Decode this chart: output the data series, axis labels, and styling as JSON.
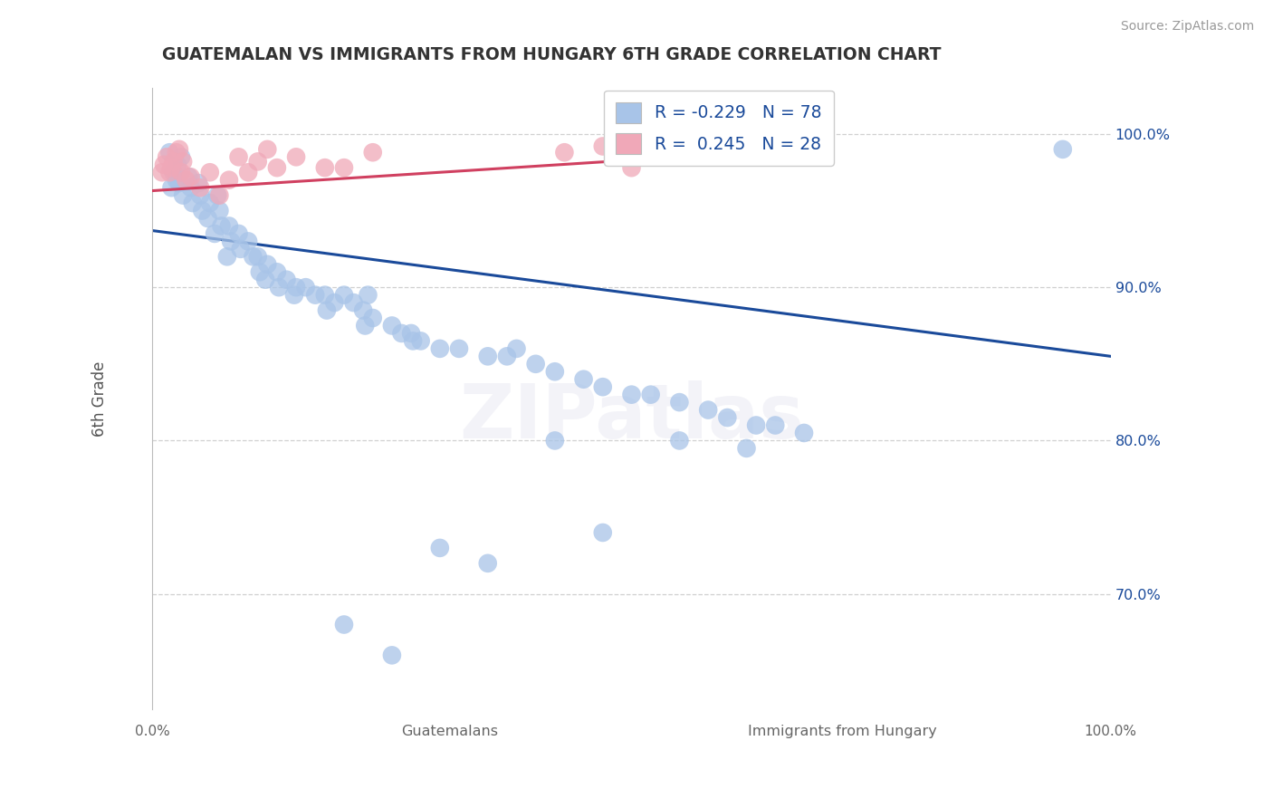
{
  "title": "GUATEMALAN VS IMMIGRANTS FROM HUNGARY 6TH GRADE CORRELATION CHART",
  "source": "Source: ZipAtlas.com",
  "ylabel": "6th Grade",
  "legend_blue_r": "-0.229",
  "legend_blue_n": "78",
  "legend_pink_r": "0.245",
  "legend_pink_n": "28",
  "blue_color": "#a8c4e8",
  "pink_color": "#f0a8b8",
  "blue_line_color": "#1a4a9a",
  "pink_line_color": "#d04060",
  "title_color": "#333333",
  "source_color": "#999999",
  "legend_text_color": "#1a4a9a",
  "grid_color": "#d0d0d0",
  "blue_scatter_x": [
    0.022,
    0.025,
    0.02,
    0.03,
    0.028,
    0.032,
    0.026,
    0.018,
    0.04,
    0.038,
    0.042,
    0.05,
    0.048,
    0.052,
    0.06,
    0.058,
    0.065,
    0.07,
    0.072,
    0.068,
    0.08,
    0.082,
    0.078,
    0.09,
    0.092,
    0.1,
    0.105,
    0.11,
    0.112,
    0.12,
    0.118,
    0.13,
    0.132,
    0.14,
    0.15,
    0.148,
    0.16,
    0.17,
    0.18,
    0.182,
    0.19,
    0.2,
    0.21,
    0.22,
    0.222,
    0.23,
    0.25,
    0.26,
    0.27,
    0.272,
    0.28,
    0.3,
    0.32,
    0.35,
    0.37,
    0.38,
    0.4,
    0.42,
    0.45,
    0.47,
    0.5,
    0.52,
    0.55,
    0.58,
    0.6,
    0.63,
    0.65,
    0.68,
    0.42,
    0.55,
    0.62,
    0.47,
    0.3,
    0.35,
    0.2,
    0.25,
    0.95,
    0.225
  ],
  "blue_scatter_y": [
    0.975,
    0.97,
    0.965,
    0.985,
    0.968,
    0.96,
    0.98,
    0.988,
    0.965,
    0.972,
    0.955,
    0.96,
    0.968,
    0.95,
    0.955,
    0.945,
    0.935,
    0.95,
    0.94,
    0.96,
    0.94,
    0.93,
    0.92,
    0.935,
    0.925,
    0.93,
    0.92,
    0.92,
    0.91,
    0.915,
    0.905,
    0.91,
    0.9,
    0.905,
    0.9,
    0.895,
    0.9,
    0.895,
    0.895,
    0.885,
    0.89,
    0.895,
    0.89,
    0.885,
    0.875,
    0.88,
    0.875,
    0.87,
    0.87,
    0.865,
    0.865,
    0.86,
    0.86,
    0.855,
    0.855,
    0.86,
    0.85,
    0.845,
    0.84,
    0.835,
    0.83,
    0.83,
    0.825,
    0.82,
    0.815,
    0.81,
    0.81,
    0.805,
    0.8,
    0.8,
    0.795,
    0.74,
    0.73,
    0.72,
    0.68,
    0.66,
    0.99,
    0.895
  ],
  "pink_scatter_x": [
    0.01,
    0.012,
    0.015,
    0.018,
    0.02,
    0.022,
    0.025,
    0.028,
    0.03,
    0.032,
    0.035,
    0.04,
    0.05,
    0.06,
    0.07,
    0.08,
    0.09,
    0.1,
    0.11,
    0.12,
    0.13,
    0.15,
    0.18,
    0.2,
    0.23,
    0.43,
    0.47,
    0.5
  ],
  "pink_scatter_y": [
    0.975,
    0.98,
    0.985,
    0.975,
    0.978,
    0.982,
    0.988,
    0.99,
    0.975,
    0.982,
    0.97,
    0.972,
    0.965,
    0.975,
    0.96,
    0.97,
    0.985,
    0.975,
    0.982,
    0.99,
    0.978,
    0.985,
    0.978,
    0.978,
    0.988,
    0.988,
    0.992,
    0.978
  ],
  "blue_line_x": [
    0.0,
    1.0
  ],
  "blue_line_y": [
    0.937,
    0.855
  ],
  "pink_line_x": [
    0.0,
    0.55
  ],
  "pink_line_y": [
    0.963,
    0.985
  ],
  "xlim": [
    0.0,
    1.0
  ],
  "ylim": [
    0.625,
    1.03
  ],
  "yticks": [
    0.7,
    0.8,
    0.9,
    1.0
  ],
  "xticks": [
    0.0,
    0.25,
    0.5,
    0.75,
    1.0
  ],
  "watermark": "ZIPatlas"
}
